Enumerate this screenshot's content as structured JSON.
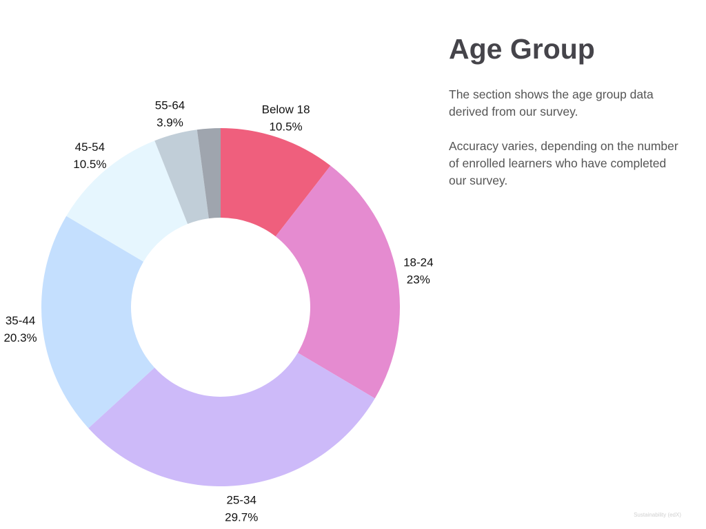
{
  "chart_data": {
    "type": "pie",
    "donut": true,
    "title": "Age Group",
    "start_angle_deg": 0,
    "direction": "clockwise",
    "slices": [
      {
        "label": "Below 18",
        "value": 10.5,
        "value_label": "10.5%",
        "color": "#ef5f7d"
      },
      {
        "label": "18-24",
        "value": 23.0,
        "value_label": "23%",
        "color": "#e58bd0"
      },
      {
        "label": "25-34",
        "value": 29.7,
        "value_label": "29.7%",
        "color": "#cdbaf9"
      },
      {
        "label": "35-44",
        "value": 20.3,
        "value_label": "20.3%",
        "color": "#c4dffe"
      },
      {
        "label": "45-54",
        "value": 10.5,
        "value_label": "10.5%",
        "color": "#e6f6fe"
      },
      {
        "label": "55-64",
        "value": 3.9,
        "value_label": "3.9%",
        "color": "#c1ced8"
      },
      {
        "label": "",
        "value": 2.1,
        "value_label": "",
        "color": "#9fa5ae"
      }
    ]
  },
  "panel": {
    "title": "Age Group",
    "paragraph_1": "The section shows the age group data derived from our survey.",
    "paragraph_2": "Accuracy varies, depending on the number of enrolled learners who have completed our survey."
  },
  "footer": {
    "text": "Sustainability (edX)"
  }
}
